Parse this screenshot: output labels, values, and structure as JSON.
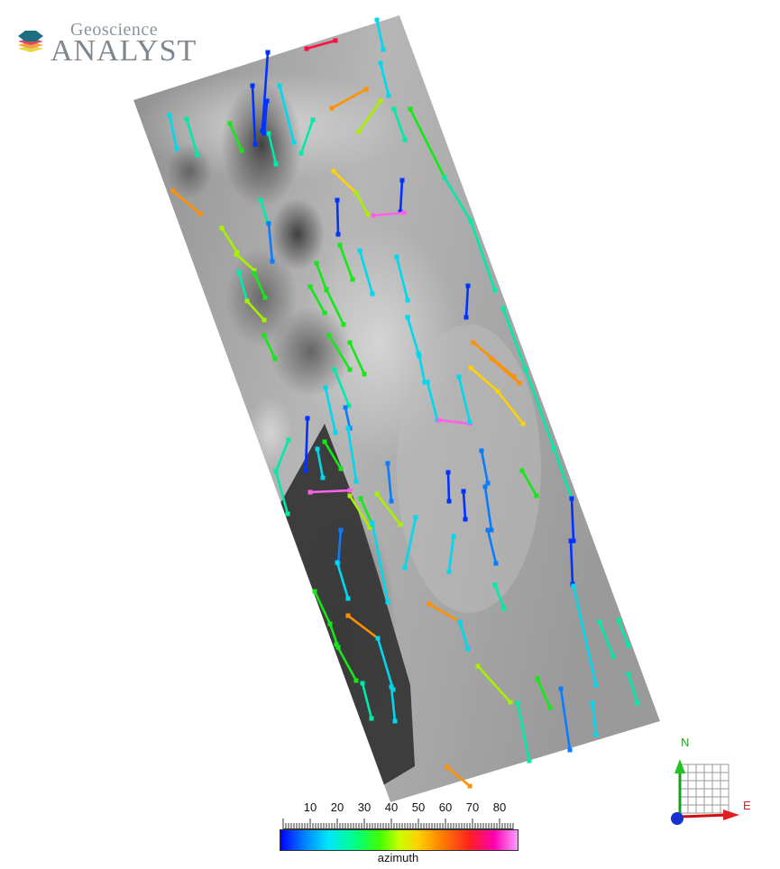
{
  "logo": {
    "line1": "Geoscience",
    "line2": "ANALYST"
  },
  "colorbar": {
    "title": "azimuth",
    "tick_labels": [
      "10",
      "20",
      "30",
      "40",
      "50",
      "60",
      "70",
      "80"
    ],
    "range": [
      0,
      85
    ]
  },
  "orientation": {
    "north": "N",
    "east": "E"
  },
  "colors": {
    "blue": "#0033ff",
    "azure": "#0a7cff",
    "cyan": "#00d8ee",
    "aqua": "#00eaa8",
    "green": "#14e818",
    "lime": "#a8f000",
    "yellow": "#ffd200",
    "orange": "#ff9000",
    "red": "#ff1040",
    "pink": "#ff60e8"
  },
  "icons": [
    "geoscience-analyst-logo-icon",
    "north-arrow-icon",
    "east-arrow-icon",
    "grid-plane-icon",
    "origin-sphere-icon"
  ]
}
